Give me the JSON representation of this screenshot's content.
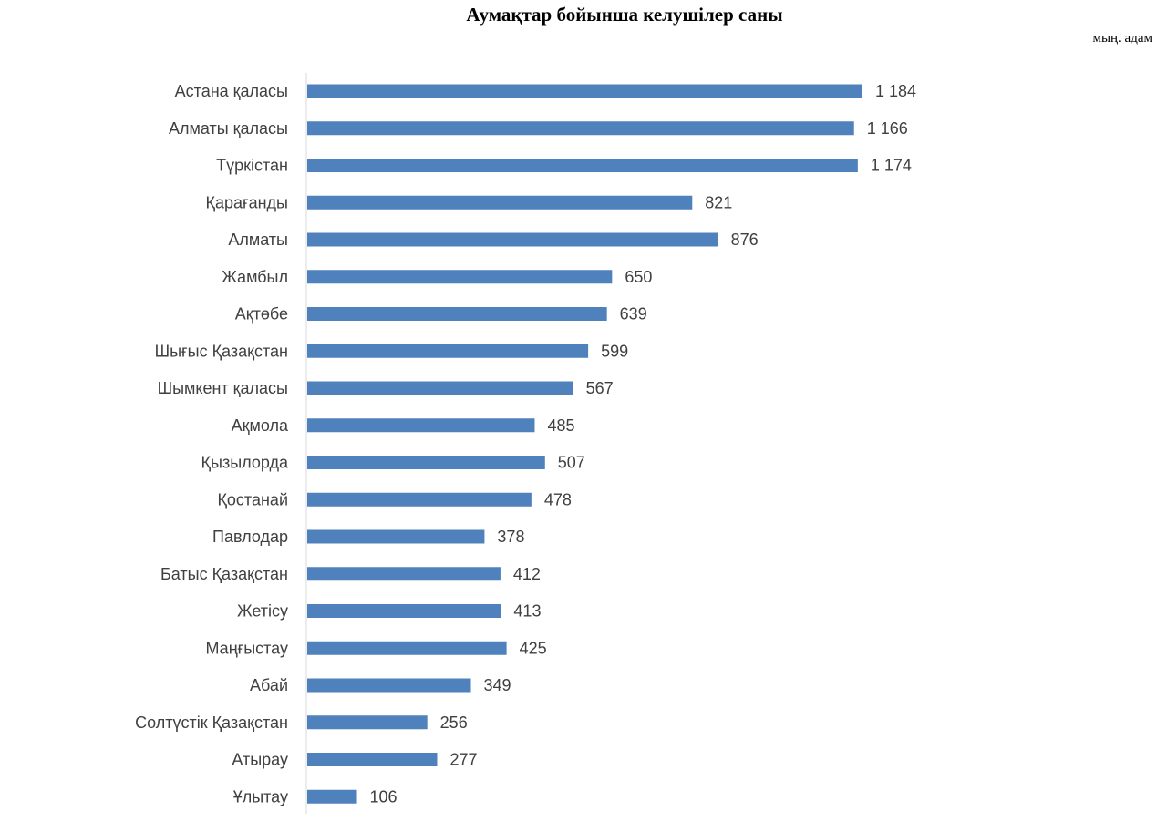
{
  "chart_data": {
    "type": "bar",
    "orientation": "horizontal",
    "title": "Аумақтар бойынша келушілер саны",
    "unit": "мың. адам",
    "categories": [
      "Астана қаласы",
      "Алматы қаласы",
      "Түркістан",
      "Қарағанды",
      "Алматы",
      "Жамбыл",
      "Ақтөбе",
      "Шығыс Қазақстан",
      "Шымкент қаласы",
      "Ақмола",
      "Қызылорда",
      "Қостанай",
      "Павлодар",
      "Батыс Қазақстан",
      "Жетісу",
      "Маңғыстау",
      "Абай",
      "Солтүстік Қазақстан",
      "Атырау",
      "Ұлытау"
    ],
    "values": [
      1184,
      1166,
      1174,
      821,
      876,
      650,
      639,
      599,
      567,
      485,
      507,
      478,
      378,
      412,
      413,
      425,
      349,
      256,
      277,
      106
    ],
    "value_labels": [
      "1 184",
      "1 166",
      "1 174",
      "821",
      "876",
      "650",
      "639",
      "599",
      "567",
      "485",
      "507",
      "478",
      "378",
      "412",
      "413",
      "425",
      "349",
      "256",
      "277",
      "106"
    ],
    "xlim": [
      0,
      1184
    ],
    "grid": false,
    "legend": "none",
    "bar_color": "#4f81bd"
  }
}
